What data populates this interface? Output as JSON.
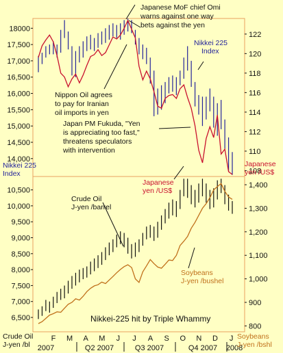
{
  "chart_data": [
    {
      "type": "line",
      "panel": "top",
      "series": [
        {
          "name": "Nikkei 225 Index",
          "style": "ohlc-bars",
          "color": "#23239a",
          "values": [
            {
              "low": 16650,
              "high": 17150
            },
            {
              "low": 16900,
              "high": 17250
            },
            {
              "low": 17100,
              "high": 17450
            },
            {
              "low": 17200,
              "high": 17500
            },
            {
              "low": 17200,
              "high": 17600
            },
            {
              "low": 17100,
              "high": 17500
            },
            {
              "low": 17250,
              "high": 17950
            },
            {
              "low": 17700,
              "high": 18250
            },
            {
              "low": 17350,
              "high": 17900
            },
            {
              "low": 16550,
              "high": 17450
            },
            {
              "low": 16500,
              "high": 17300
            },
            {
              "low": 16950,
              "high": 17450
            },
            {
              "low": 17100,
              "high": 17600
            },
            {
              "low": 17300,
              "high": 17750
            },
            {
              "low": 17350,
              "high": 17800
            },
            {
              "low": 17300,
              "high": 17700
            },
            {
              "low": 17400,
              "high": 17850
            },
            {
              "low": 17500,
              "high": 17900
            },
            {
              "low": 17550,
              "high": 18000
            },
            {
              "low": 17650,
              "high": 18100
            },
            {
              "low": 17750,
              "high": 18150
            },
            {
              "low": 17700,
              "high": 18100
            },
            {
              "low": 17650,
              "high": 18150
            },
            {
              "low": 17800,
              "high": 18250
            },
            {
              "low": 17900,
              "high": 18300
            },
            {
              "low": 17850,
              "high": 18250
            },
            {
              "low": 17500,
              "high": 17950
            },
            {
              "low": 17200,
              "high": 17700
            },
            {
              "low": 17050,
              "high": 17500
            },
            {
              "low": 16900,
              "high": 17400
            },
            {
              "low": 16300,
              "high": 17100
            },
            {
              "low": 15300,
              "high": 16700
            },
            {
              "low": 15350,
              "high": 16150
            },
            {
              "low": 15500,
              "high": 16250
            },
            {
              "low": 15700,
              "high": 16350
            },
            {
              "low": 16000,
              "high": 16500
            },
            {
              "low": 16050,
              "high": 16550
            },
            {
              "low": 15950,
              "high": 16500
            },
            {
              "low": 16250,
              "high": 16700
            },
            {
              "low": 16450,
              "high": 17100
            },
            {
              "low": 16700,
              "high": 17450
            },
            {
              "low": 16200,
              "high": 17000
            },
            {
              "low": 15600,
              "high": 16350
            },
            {
              "low": 15350,
              "high": 15950
            },
            {
              "low": 15000,
              "high": 15900
            },
            {
              "low": 15200,
              "high": 15900
            },
            {
              "low": 15450,
              "high": 16150
            },
            {
              "low": 14950,
              "high": 15900
            },
            {
              "low": 14700,
              "high": 15700
            },
            {
              "low": 14900,
              "high": 15800
            },
            {
              "low": 14300,
              "high": 15200
            },
            {
              "low": 13600,
              "high": 14650
            },
            {
              "low": 13500,
              "high": 14200
            }
          ]
        },
        {
          "name": "Japanese yen /US$",
          "style": "line",
          "color": "#c8102e",
          "values": [
            119.6,
            120.8,
            121.4,
            121.9,
            121.2,
            119.8,
            118.0,
            117.6,
            116.6,
            117.4,
            117.9,
            117.0,
            117.8,
            118.8,
            119.7,
            119.9,
            120.4,
            119.8,
            120.1,
            120.9,
            121.7,
            121.5,
            121.9,
            122.6,
            123.4,
            122.5,
            121.6,
            118.7,
            117.3,
            118.2,
            117.4,
            116.1,
            114.6,
            114.4,
            115.4,
            115.7,
            115.8,
            115.4,
            116.4,
            116.8,
            115.5,
            114.4,
            112.6,
            110.1,
            108.8,
            111.3,
            112.5,
            111.4,
            113.7,
            109.7,
            110.2,
            107.9,
            107.6
          ]
        }
      ],
      "y_left": {
        "label": "Nikkei 225 Index",
        "ticks": [
          "18000",
          "17,500",
          "17,000",
          "16,500",
          "16,000",
          "15,500",
          "15,000",
          "14,500",
          "14,000"
        ],
        "range": [
          13450,
          18300
        ]
      },
      "y_right": {
        "label": "Japanese yen /US$",
        "ticks": [
          "122",
          "120",
          "118",
          "116",
          "114",
          "112",
          "110",
          "108"
        ],
        "range": [
          107.4,
          123.6
        ]
      }
    },
    {
      "type": "line",
      "panel": "bottom",
      "series": [
        {
          "name": "Crude Oil J-yen /barrel",
          "style": "ohlc-bars",
          "color": "#111111",
          "values": [
            {
              "low": 6450,
              "high": 6750
            },
            {
              "low": 6550,
              "high": 6850
            },
            {
              "low": 6700,
              "high": 7050
            },
            {
              "low": 6650,
              "high": 7000
            },
            {
              "low": 6800,
              "high": 7150
            },
            {
              "low": 6950,
              "high": 7300
            },
            {
              "low": 7050,
              "high": 7400
            },
            {
              "low": 7100,
              "high": 7500
            },
            {
              "low": 7250,
              "high": 7650
            },
            {
              "low": 7400,
              "high": 7800
            },
            {
              "low": 7500,
              "high": 7900
            },
            {
              "low": 7600,
              "high": 8000
            },
            {
              "low": 7700,
              "high": 8050
            },
            {
              "low": 7750,
              "high": 8100
            },
            {
              "low": 7850,
              "high": 8250
            },
            {
              "low": 7950,
              "high": 8350
            },
            {
              "low": 8050,
              "high": 8450
            },
            {
              "low": 8150,
              "high": 8550
            },
            {
              "low": 8300,
              "high": 8700
            },
            {
              "low": 8450,
              "high": 8850
            },
            {
              "low": 8550,
              "high": 8950
            },
            {
              "low": 8700,
              "high": 9100
            },
            {
              "low": 8800,
              "high": 9200
            },
            {
              "low": 8700,
              "high": 9150
            },
            {
              "low": 8500,
              "high": 9000
            },
            {
              "low": 8350,
              "high": 8800
            },
            {
              "low": 8400,
              "high": 8850
            },
            {
              "low": 8550,
              "high": 8950
            },
            {
              "low": 8750,
              "high": 9150
            },
            {
              "low": 8950,
              "high": 9350
            },
            {
              "low": 9000,
              "high": 9400
            },
            {
              "low": 8900,
              "high": 9350
            },
            {
              "low": 9000,
              "high": 9500
            },
            {
              "low": 9250,
              "high": 9700
            },
            {
              "low": 9450,
              "high": 9900
            },
            {
              "low": 9600,
              "high": 10100
            },
            {
              "low": 9700,
              "high": 10200
            },
            {
              "low": 9650,
              "high": 10150
            },
            {
              "low": 9900,
              "high": 10500
            },
            {
              "low": 10300,
              "high": 10850
            },
            {
              "low": 10250,
              "high": 10850
            },
            {
              "low": 10050,
              "high": 10650
            },
            {
              "low": 9950,
              "high": 10500
            },
            {
              "low": 10100,
              "high": 10700
            },
            {
              "low": 10300,
              "high": 10850
            },
            {
              "low": 10100,
              "high": 10700
            },
            {
              "low": 9900,
              "high": 10500
            },
            {
              "low": 9950,
              "high": 10550
            },
            {
              "low": 10200,
              "high": 10800
            },
            {
              "low": 10400,
              "high": 10850
            },
            {
              "low": 10050,
              "high": 10650
            },
            {
              "low": 9850,
              "high": 10350
            },
            {
              "low": 9750,
              "high": 10150
            }
          ]
        },
        {
          "name": "Soybeans J-yen /bushel",
          "style": "line",
          "color": "#c0701b",
          "values": [
            810,
            818,
            832,
            846,
            852,
            860,
            858,
            875,
            892,
            900,
            915,
            910,
            926,
            946,
            960,
            970,
            975,
            986,
            980,
            995,
            1010,
            1026,
            1040,
            1052,
            1060,
            1048,
            1000,
            985,
            1030,
            1055,
            1082,
            1065,
            1050,
            1045,
            1062,
            1080,
            1078,
            1100,
            1142,
            1160,
            1180,
            1215,
            1240,
            1270,
            1300,
            1320,
            1345,
            1378,
            1392,
            1405,
            1372,
            1348,
            1338
          ]
        }
      ],
      "y_left": {
        "label": "Crude Oil J-yen /bl",
        "ticks": [
          "10,500",
          "10,000",
          "9,500",
          "9,000",
          "8,500",
          "8,000",
          "7,500",
          "7,000",
          "6,500"
        ],
        "range": [
          6050,
          10920
        ]
      },
      "y_right": {
        "label": "Soybeans J-yen /bshl",
        "ticks": [
          "1,400",
          "1,300",
          "1,200",
          "1,100",
          "1,000",
          "900",
          "800"
        ],
        "range": [
          775,
          1435
        ]
      }
    }
  ],
  "x_axis": {
    "months": [
      "F",
      "M",
      "A",
      "M",
      "J",
      "J",
      "A",
      "S",
      "O",
      "N",
      "D",
      "J"
    ],
    "years": [
      "2007",
      "Q2 2007",
      "Q3 2007",
      "Q4 2007",
      "2008"
    ]
  },
  "annotations": {
    "mof": [
      "Japanese MoF chief Omi",
      "warns against one way",
      "bets against the yen"
    ],
    "nippon": [
      "Nippon Oil agrees",
      "to pay for Iranian",
      "oil imports in yen"
    ],
    "fukuda": [
      "Japan PM Fukuda, \"Yen",
      "is appreciating too fast,\"",
      "threatens speculators",
      "with intervention"
    ],
    "nikkei_index": [
      "Nikkei 225",
      "Index"
    ],
    "nikkei_left": [
      "Nikkei 225",
      "Index"
    ],
    "yen_right": [
      "Japanese",
      "yen /US$"
    ],
    "yen_mid": [
      "Japanese",
      "yen /US$"
    ],
    "crude_label": [
      "Crude Oil",
      "J-yen /barrel"
    ],
    "soy_label": [
      "Soybeans",
      "J-yen /bushel"
    ],
    "title": "Nikkei-225 hit by Triple Whammy",
    "crude_axis": [
      "Crude Oil",
      "J-yen /bl"
    ],
    "soy_axis": [
      "Soybeans",
      "J-yen /bshl"
    ]
  },
  "colors": {
    "background": "#ffffc4",
    "nikkei": "#23239a",
    "yen": "#c8102e",
    "crude": "#111111",
    "soy": "#c0701b",
    "frame": "#e8a060"
  }
}
